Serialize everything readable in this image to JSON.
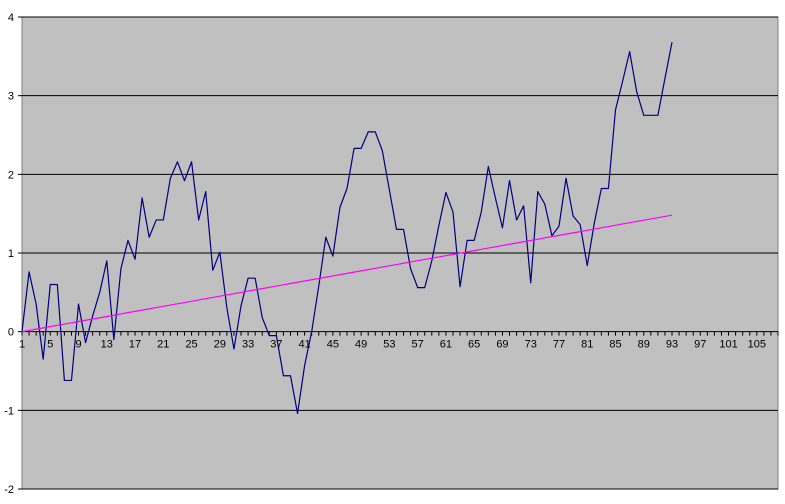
{
  "chart_data": {
    "type": "line",
    "title": "",
    "xlabel": "",
    "ylabel": "",
    "xlim": [
      1,
      108
    ],
    "ylim": [
      -2,
      4
    ],
    "y_ticks": [
      -2,
      -1,
      0,
      1,
      2,
      3,
      4
    ],
    "x_ticks": [
      1,
      5,
      9,
      13,
      17,
      21,
      25,
      29,
      33,
      37,
      41,
      45,
      49,
      53,
      57,
      61,
      65,
      69,
      73,
      77,
      81,
      85,
      89,
      93,
      97,
      101,
      105
    ],
    "grid": "horizontal",
    "legend": "none",
    "plot_background": "#c0c0c0",
    "series": [
      {
        "color": "#000080",
        "x": [
          1,
          2,
          3,
          4,
          5,
          6,
          7,
          8,
          9,
          10,
          11,
          12,
          13,
          14,
          15,
          16,
          17,
          18,
          19,
          20,
          21,
          22,
          23,
          24,
          25,
          26,
          27,
          28,
          29,
          30,
          31,
          32,
          33,
          34,
          35,
          36,
          37,
          38,
          39,
          40,
          41,
          42,
          43,
          44,
          45,
          46,
          47,
          48,
          49,
          50,
          51,
          52,
          53,
          54,
          55,
          56,
          57,
          58,
          59,
          60,
          61,
          62,
          63,
          64,
          65,
          66,
          67,
          68,
          69,
          70,
          71,
          72,
          73,
          74,
          75,
          76,
          77,
          78,
          79,
          80,
          81,
          82,
          83,
          84,
          85,
          86,
          87,
          88,
          89,
          90,
          91,
          92,
          93
        ],
        "values": [
          0.0,
          0.76,
          0.35,
          -0.35,
          0.6,
          0.6,
          -0.62,
          -0.62,
          0.35,
          -0.14,
          0.2,
          0.5,
          0.9,
          -0.1,
          0.8,
          1.16,
          0.92,
          1.7,
          1.2,
          1.42,
          1.42,
          1.95,
          2.16,
          1.92,
          2.16,
          1.42,
          1.78,
          0.78,
          1.01,
          0.3,
          -0.22,
          0.33,
          0.68,
          0.68,
          0.18,
          -0.05,
          -0.05,
          -0.56,
          -0.56,
          -1.04,
          -0.43,
          0.0,
          0.58,
          1.2,
          0.96,
          1.58,
          1.82,
          2.33,
          2.33,
          2.54,
          2.54,
          2.3,
          1.8,
          1.3,
          1.3,
          0.8,
          0.56,
          0.56,
          0.9,
          1.35,
          1.77,
          1.52,
          0.57,
          1.16,
          1.16,
          1.52,
          2.1,
          1.7,
          1.32,
          1.92,
          1.42,
          1.6,
          0.62,
          1.78,
          1.62,
          1.22,
          1.34,
          1.95,
          1.47,
          1.36,
          0.84,
          1.38,
          1.82,
          1.82,
          2.82,
          3.18,
          3.56,
          3.05,
          2.75,
          2.75,
          2.75,
          3.22,
          3.68
        ]
      },
      {
        "color": "#ff00ff",
        "x": [
          1,
          2,
          3,
          4,
          5,
          6,
          7,
          8,
          9,
          10,
          11,
          12,
          13,
          14,
          15,
          16,
          17,
          18,
          19,
          20,
          21,
          22,
          23,
          24,
          25,
          26,
          27,
          28,
          29,
          30,
          31,
          32,
          33,
          34,
          35,
          36,
          37,
          38,
          39,
          40,
          41,
          42,
          43,
          44,
          45,
          46,
          47,
          48,
          49,
          50,
          51,
          52,
          53,
          54,
          55,
          56,
          57,
          58,
          59,
          60,
          61,
          62,
          63,
          64,
          65,
          66,
          67,
          68,
          69,
          70,
          71,
          72,
          73,
          74,
          75,
          76,
          77,
          78,
          79,
          80,
          81,
          82,
          83,
          84,
          85,
          86,
          87,
          88,
          89,
          90,
          91,
          92,
          93
        ],
        "values": [
          0.0,
          0.016,
          0.032,
          0.048,
          0.064,
          0.081,
          0.097,
          0.113,
          0.129,
          0.145,
          0.161,
          0.177,
          0.193,
          0.209,
          0.225,
          0.242,
          0.258,
          0.274,
          0.29,
          0.306,
          0.322,
          0.338,
          0.354,
          0.37,
          0.386,
          0.403,
          0.419,
          0.435,
          0.451,
          0.467,
          0.483,
          0.499,
          0.515,
          0.531,
          0.547,
          0.564,
          0.58,
          0.596,
          0.612,
          0.628,
          0.644,
          0.66,
          0.676,
          0.692,
          0.708,
          0.725,
          0.741,
          0.757,
          0.773,
          0.789,
          0.805,
          0.821,
          0.837,
          0.853,
          0.87,
          0.886,
          0.902,
          0.918,
          0.934,
          0.95,
          0.966,
          0.982,
          0.998,
          1.014,
          1.03,
          1.047,
          1.063,
          1.079,
          1.095,
          1.111,
          1.127,
          1.143,
          1.159,
          1.175,
          1.191,
          1.208,
          1.224,
          1.24,
          1.256,
          1.272,
          1.288,
          1.304,
          1.32,
          1.336,
          1.352,
          1.369,
          1.385,
          1.401,
          1.417,
          1.433,
          1.449,
          1.465,
          1.481
        ]
      }
    ]
  }
}
